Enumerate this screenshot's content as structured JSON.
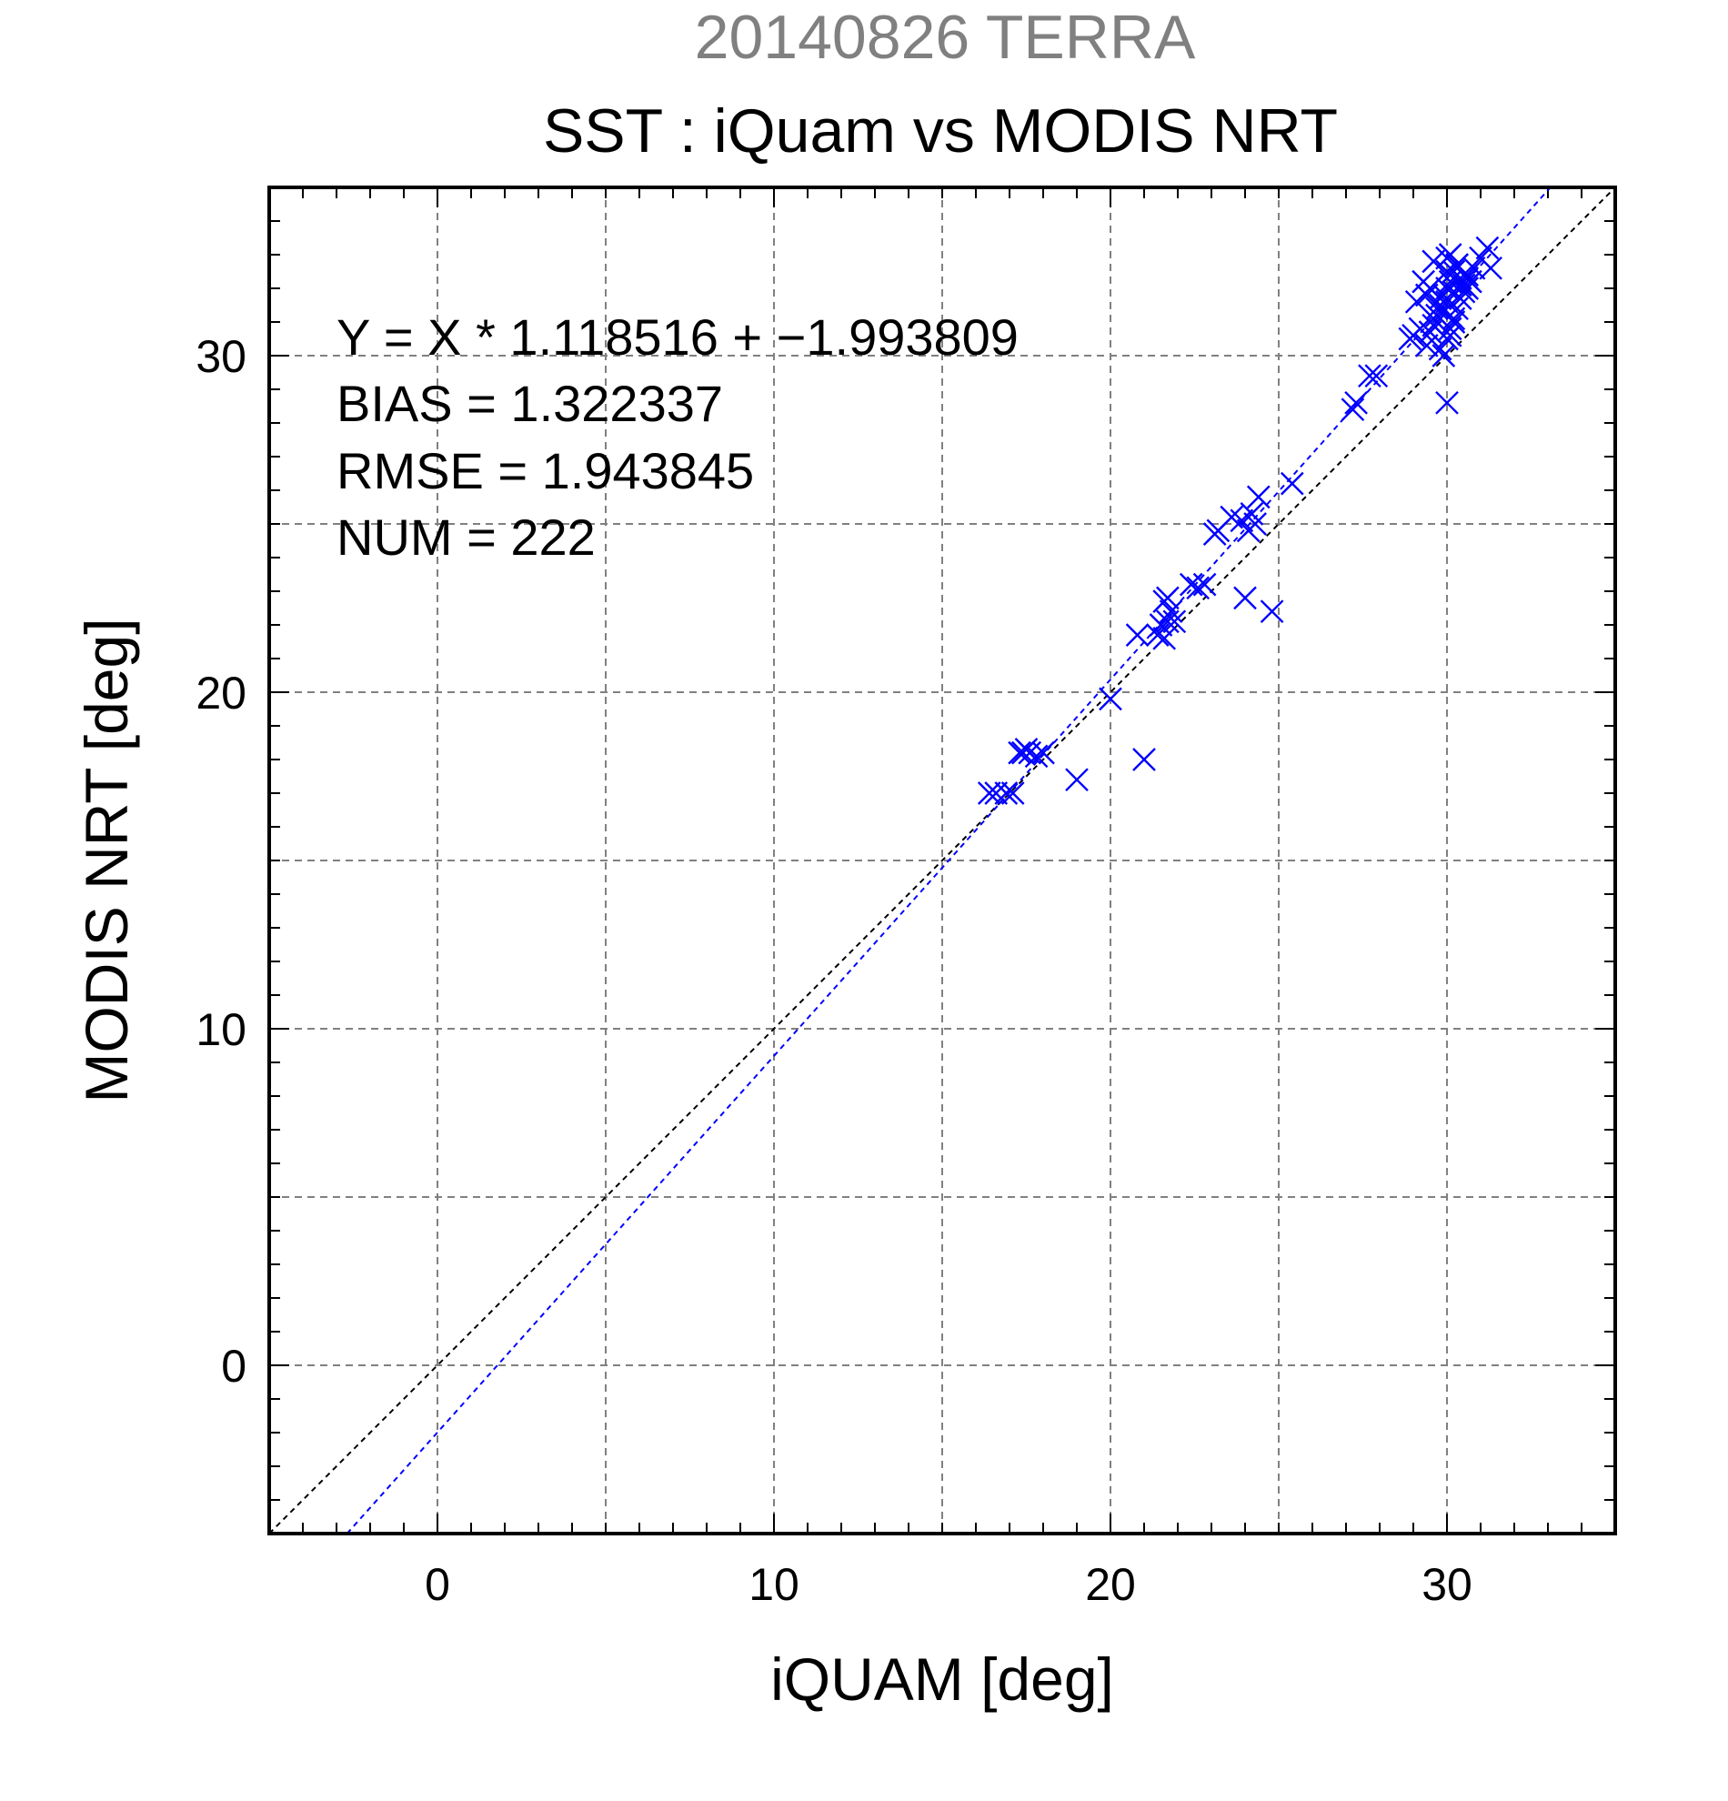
{
  "chart_data": {
    "type": "scatter",
    "title": "20140826 TERRA",
    "subtitle": "SST : iQuam vs MODIS NRT",
    "xlabel": "iQUAM [deg]",
    "ylabel": "MODIS NRT [deg]",
    "xlim": [
      -5,
      35
    ],
    "ylim": [
      -5,
      35
    ],
    "xticks": [
      "0",
      "10",
      "20",
      "30"
    ],
    "yticks": [
      "0",
      "10",
      "20",
      "30"
    ],
    "grid": true,
    "stats": [
      "Y = X * 1.118516 + −1.993809",
      "BIAS = 1.322337",
      "RMSE = 1.943845",
      "NUM = 222"
    ],
    "fit": {
      "slope": 1.118516,
      "intercept": -1.993809
    },
    "colors": {
      "points": "#0000ff",
      "fit_line": "#0000ff",
      "identity_line": "#000000",
      "title": "#808080"
    },
    "series": [
      {
        "marker": "x",
        "x": [
          16.4,
          16.6,
          16.9,
          17.1,
          17.3,
          17.5,
          17.6,
          17.8,
          18.0,
          17.4,
          19.0,
          20.0,
          20.8,
          21.0,
          21.4,
          21.5,
          21.6,
          21.7,
          21.8,
          21.9,
          21.6,
          21.7,
          22.4,
          22.6,
          22.8,
          23.1,
          23.2,
          23.6,
          23.9,
          24.1,
          24.2,
          24.4,
          24.0,
          24.3,
          24.8,
          25.4,
          27.2,
          27.3,
          27.7,
          27.9,
          28.9,
          29.0,
          29.2,
          29.4,
          29.5,
          29.6,
          29.7,
          29.8,
          29.9,
          30.0,
          30.1,
          30.2,
          30.3,
          30.4,
          30.5,
          30.6,
          30.8,
          31.0,
          31.2,
          31.3,
          29.8,
          30.0,
          30.1,
          30.2,
          30.3,
          30.4,
          30.5,
          30.6,
          30.7,
          29.7,
          29.9,
          30.0,
          30.2,
          30.4,
          30.6,
          29.5,
          29.6,
          30.0,
          30.1,
          30.3,
          29.1,
          29.3,
          29.4,
          29.9,
          30.0,
          30.1,
          30.2,
          29.7,
          29.8,
          30.0
        ],
        "y": [
          17.0,
          17.0,
          17.0,
          17.0,
          18.2,
          18.3,
          18.2,
          18.1,
          18.2,
          18.2,
          17.4,
          19.8,
          21.7,
          18.0,
          21.7,
          22.0,
          21.6,
          22.1,
          22.4,
          22.1,
          22.7,
          22.8,
          23.2,
          23.1,
          23.2,
          24.7,
          24.8,
          25.2,
          25.1,
          24.8,
          25.3,
          25.8,
          22.8,
          25.0,
          22.4,
          26.2,
          28.4,
          28.6,
          29.4,
          29.4,
          30.5,
          30.6,
          30.8,
          30.3,
          30.7,
          30.9,
          31.2,
          31.5,
          31.8,
          32.0,
          32.2,
          32.5,
          32.7,
          32.3,
          32.1,
          32.4,
          32.6,
          32.9,
          33.2,
          32.6,
          30.2,
          30.5,
          30.8,
          31.0,
          31.4,
          31.7,
          31.9,
          32.0,
          32.2,
          31.0,
          31.3,
          31.6,
          31.9,
          32.1,
          32.3,
          32.0,
          32.8,
          32.9,
          33.0,
          32.7,
          31.6,
          32.2,
          31.8,
          30.0,
          28.6,
          30.6,
          31.1,
          31.4,
          31.7,
          32.5
        ]
      }
    ]
  }
}
